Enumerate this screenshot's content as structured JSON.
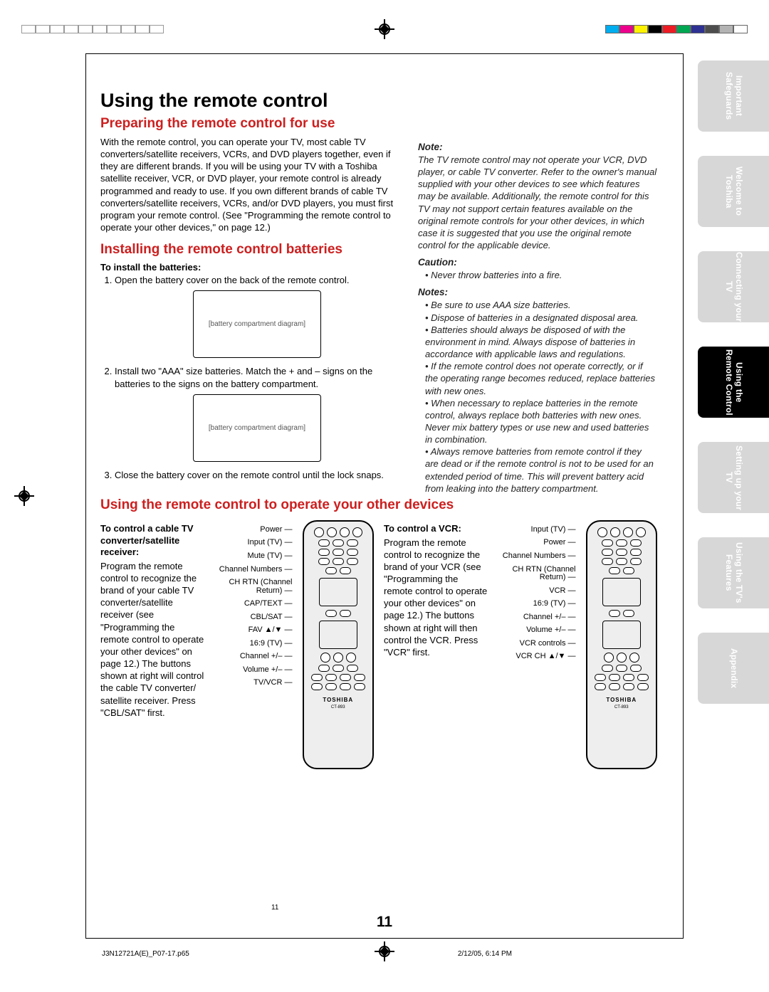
{
  "print_swatches_right": [
    "#00adee",
    "#ec008c",
    "#fff200",
    "#000000",
    "#ed1c24",
    "#00a651",
    "#2e3192",
    "#4d4d4d",
    "#b3b3b3",
    "#ffffff"
  ],
  "h1": "Using the remote control",
  "h2a": "Preparing the remote control for use",
  "p1": "With the remote control, you can operate your TV, most cable TV converters/satellite receivers, VCRs, and DVD players together, even if they are different brands. If you will be using your TV with a Toshiba satellite receiver, VCR, or DVD player, your remote control is already programmed and ready to use. If you own different brands of cable TV converters/satellite receivers, VCRs, and/or DVD players, you must first program your remote control. (See \"Programming the remote control to operate your other devices,\" on page 12.)",
  "h2b": "Installing the remote control batteries",
  "h3a": "To install the batteries:",
  "ol": [
    "Open the battery cover on the back of the remote control.",
    "Install two \"AAA\" size batteries. Match the + and – signs on the batteries to the signs on the battery compartment.",
    "Close the battery cover on the remote control until the lock snaps."
  ],
  "h2c": "Using the remote control to operate your other devices",
  "noteH": "Note:",
  "note": "The TV remote control may not operate your VCR, DVD player, or cable TV converter. Refer to the owner's manual supplied with your other devices to see which features may be available. Additionally, the remote control for this TV may not support certain features available on the original remote controls for your other devices, in which case it is suggested that you use the original remote control for the applicable device.",
  "cautionH": "Caution:",
  "caution": "Never throw batteries into a fire.",
  "notesH": "Notes:",
  "notes": [
    "Be sure to use AAA size batteries.",
    "Dispose of batteries in a designated disposal area.",
    "Batteries should always be disposed of with the environment in mind. Always dispose of batteries in accordance with applicable laws and regulations.",
    "If the remote control does not operate correctly, or if the operating range becomes reduced, replace batteries with new ones.",
    "When necessary to replace batteries in the remote control, always replace both batteries with new ones. Never mix battery types or use new and used batteries in combination.",
    "Always remove batteries from remote control if they are dead or if the remote control is not to be used for an extended period of time. This will prevent battery acid from leaking into the battery compartment."
  ],
  "cbl_h": "To control a cable TV converter/satellite receiver:",
  "cbl_p": "Program the remote control to recognize the brand of your cable TV converter/satellite receiver (see \"Programming the remote control to operate your other devices\" on page 12.) The buttons shown at right will control the cable TV converter/ satellite receiver. Press \"CBL/SAT\" first.",
  "cbl_labels": [
    "Power",
    "Input (TV)",
    "Mute (TV)",
    "Channel Numbers",
    "CH RTN (Channel Return)",
    "CAP/TEXT",
    "CBL/SAT",
    "FAV ▲/▼",
    "16:9 (TV)",
    "Channel +/–",
    "Volume +/–",
    "TV/VCR"
  ],
  "vcr_h": "To control a VCR:",
  "vcr_p": "Program the remote control to recognize the brand of your VCR (see \"Programming the remote control to operate your other devices\" on page 12.) The buttons shown at right will then control the VCR. Press \"VCR\" first.",
  "vcr_labels": [
    "Input (TV)",
    "Power",
    "Channel Numbers",
    "CH RTN (Channel Return)",
    "VCR",
    "16:9 (TV)",
    "Channel +/–",
    "Volume +/–",
    "VCR controls",
    "VCR CH ▲/▼"
  ],
  "tabs": [
    "Important Safeguards",
    "Welcome to Toshiba",
    "Connecting your TV",
    "Using the Remote Control",
    "Setting up your TV",
    "Using the TV's Features",
    "Appendix"
  ],
  "tab_active_index": 3,
  "remote_brand": "TOSHIBA",
  "remote_model": "CT-893",
  "pagenum": "11",
  "footer_l": "J3N12721A(E)_P07-17.p65",
  "footer_m": "11",
  "footer_r": "2/12/05, 6:14 PM"
}
